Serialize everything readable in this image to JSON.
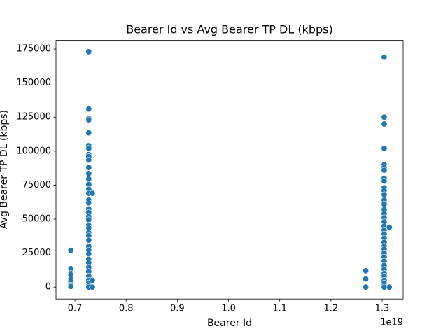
{
  "chart_data": {
    "type": "scatter",
    "title": "Bearer Id vs Avg Bearer TP DL (kbps)",
    "x_label": "Bearer Id",
    "y_label": "Avg Bearer TP DL (kbps)",
    "x_offset_label": "1e19",
    "color": "#1f77b4",
    "xlim": [
      0.663,
      1.341
    ],
    "ylim": [
      -8750,
      181400
    ],
    "xticks": [
      0.7,
      0.8,
      0.9,
      {
        "value": 1,
        "label": "1.0"
      },
      1.1,
      1.2,
      1.3
    ],
    "yticks": [
      0,
      25000,
      50000,
      75000,
      100000,
      125000,
      150000,
      175000
    ],
    "x": [
      0.692,
      0.692,
      0.692,
      0.692,
      0.692,
      0.692,
      0.692,
      0.692,
      0.727,
      0.727,
      0.727,
      0.727,
      0.727,
      0.727,
      0.727,
      0.727,
      0.727,
      0.727,
      0.727,
      0.727,
      0.727,
      0.727,
      0.727,
      0.727,
      0.727,
      0.727,
      0.727,
      0.727,
      0.727,
      0.727,
      0.727,
      0.727,
      0.727,
      0.727,
      0.727,
      0.727,
      0.727,
      0.727,
      0.727,
      0.727,
      0.727,
      0.727,
      0.727,
      0.727,
      0.727,
      0.727,
      0.727,
      0.734,
      0.734,
      0.734,
      1.268,
      1.268,
      1.268,
      1.304,
      1.304,
      1.304,
      1.304,
      1.304,
      1.304,
      1.304,
      1.304,
      1.304,
      1.304,
      1.304,
      1.304,
      1.304,
      1.304,
      1.304,
      1.304,
      1.304,
      1.304,
      1.304,
      1.304,
      1.304,
      1.304,
      1.304,
      1.304,
      1.304,
      1.304,
      1.304,
      1.304,
      1.304,
      1.304,
      1.304,
      1.304,
      1.304,
      1.304,
      1.304,
      1.304,
      1.314,
      1.314
    ],
    "values": [
      27000,
      13500,
      10000,
      9000,
      6000,
      4000,
      1500,
      500,
      173000,
      131000,
      124000,
      123000,
      113500,
      104000,
      102000,
      97500,
      96000,
      93500,
      88000,
      83500,
      79500,
      75500,
      72000,
      69000,
      64000,
      62000,
      57500,
      55000,
      52000,
      49500,
      45500,
      43500,
      40000,
      38000,
      34500,
      30000,
      27000,
      24500,
      20500,
      18000,
      14500,
      11500,
      8000,
      5000,
      3000,
      1000,
      0,
      69000,
      5000,
      0,
      12000,
      6000,
      0,
      169000,
      125000,
      120000,
      102000,
      90000,
      88000,
      86000,
      80000,
      78000,
      73000,
      71000,
      68000,
      64000,
      61000,
      57000,
      54000,
      51000,
      48000,
      45000,
      42000,
      39000,
      36000,
      33000,
      30000,
      28000,
      25000,
      22000,
      19000,
      16000,
      13000,
      10000,
      8000,
      5000,
      3000,
      1000,
      0,
      44000,
      0
    ]
  }
}
